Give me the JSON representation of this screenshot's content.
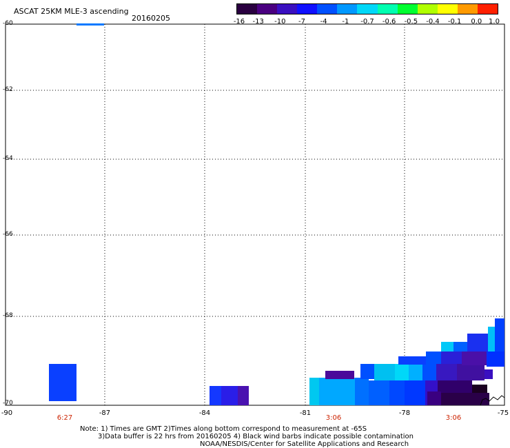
{
  "header": {
    "product": "ASCAT 25KM MLE-3 ascending",
    "date": "20160205"
  },
  "colorbar": {
    "labels": [
      "-16",
      "-13",
      "-10",
      "-7",
      "-4",
      "-1",
      "-0.7",
      "-0.6",
      "-0.5",
      "-0.4",
      "-0.1",
      "0.0",
      "1.0"
    ],
    "colors": [
      "#2a0040",
      "#4a0080",
      "#3a10c0",
      "#1010ff",
      "#0050ff",
      "#0098ff",
      "#00d8f8",
      "#00ffb0",
      "#00ff30",
      "#b0ff00",
      "#ffff00",
      "#ff9a00",
      "#ff2000"
    ]
  },
  "axes": {
    "lat_labels": [
      "-60",
      "-62",
      "-64",
      "-66",
      "-68",
      "-70"
    ],
    "lon_labels": [
      "-90",
      "-87",
      "-84",
      "-81",
      "-78",
      "-75"
    ]
  },
  "time_labels": [
    "6:27",
    "3:06",
    "3:06"
  ],
  "notes": {
    "line1": "Note: 1) Times are GMT 2)Times along bottom correspond to measurement at -65S",
    "line2": "3)Data buffer is 22 hrs from 20160205 4) Black wind barbs indicate possible contamination",
    "line3": "NOAA/NESDIS/Center for Satellite Applications and Research"
  },
  "colors": {
    "time_label": "#cc2200",
    "coastline": "#000000"
  }
}
